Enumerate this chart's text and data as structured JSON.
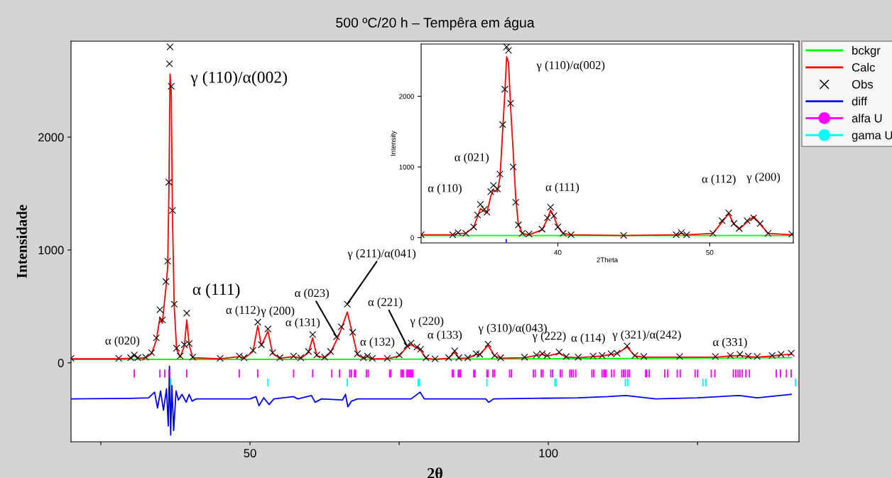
{
  "chart_data": [
    {
      "type": "line",
      "title": "500 ºC/20 h – Tempêra em água",
      "xlabel": "2θ",
      "ylabel": "Intensidade",
      "xlim": [
        20,
        142
      ],
      "ylim": [
        -700,
        2850
      ],
      "xticks": [
        {
          "value": 25,
          "label": null
        },
        50,
        {
          "value": 75,
          "label": null
        },
        100,
        {
          "value": 125,
          "label": null
        }
      ],
      "yticks": [
        0,
        1000,
        2000
      ],
      "grid": false,
      "legend": "right",
      "series": [
        {
          "name": "bckgr",
          "color": "#00ff00",
          "x": [
            20,
            60,
            100,
            140.7
          ],
          "values": [
            30,
            30,
            35,
            45
          ]
        },
        {
          "name": "Calc",
          "color": "#ff0000",
          "x": [
            20,
            28,
            30.0,
            30.6,
            31.2,
            32.5,
            33.5,
            34.3,
            34.9,
            35.3,
            35.9,
            36.2,
            36.4,
            36.6,
            36.8,
            37.0,
            37.3,
            37.7,
            38.3,
            39.0,
            39.4,
            39.8,
            40.4,
            45,
            48.2,
            49,
            50.5,
            51.3,
            51.9,
            53.0,
            53.8,
            55,
            57.3,
            58.5,
            59.8,
            60.5,
            61.2,
            62.5,
            63.5,
            64.5,
            65.3,
            66.3,
            67.2,
            68.0,
            69.0,
            69.7,
            70.5,
            73.0,
            75.0,
            76.3,
            77.0,
            78.0,
            78.6,
            79.5,
            81,
            83.3,
            84.3,
            85.0,
            86.5,
            87.9,
            88.5,
            89.9,
            91.0,
            92,
            96,
            98.0,
            99.0,
            99.8,
            101.8,
            103,
            105,
            107.5,
            109,
            110.5,
            111.5,
            113.2,
            114.5,
            116,
            122,
            128,
            130.5,
            132.1,
            133.5,
            135,
            137.5,
            139,
            140.7
          ],
          "values": [
            35,
            35,
            40,
            65,
            40,
            45,
            80,
            200,
            400,
            350,
            660,
            850,
            1500,
            2560,
            2400,
            1300,
            500,
            120,
            50,
            150,
            380,
            160,
            45,
            35,
            55,
            40,
            100,
            330,
            150,
            280,
            80,
            40,
            55,
            40,
            90,
            220,
            60,
            45,
            90,
            200,
            300,
            450,
            250,
            70,
            40,
            55,
            35,
            35,
            60,
            140,
            160,
            130,
            110,
            40,
            30,
            40,
            95,
            40,
            40,
            75,
            70,
            155,
            60,
            40,
            45,
            65,
            75,
            60,
            85,
            50,
            45,
            55,
            60,
            75,
            80,
            140,
            60,
            50,
            50,
            50,
            60,
            65,
            55,
            50,
            60,
            70,
            75
          ]
        },
        {
          "name": "Obs",
          "type": "scatter",
          "marker": "cross",
          "color": "#000000",
          "x": [
            20,
            28,
            30.0,
            30.6,
            31.2,
            32.5,
            33.5,
            34.3,
            34.9,
            35.3,
            35.9,
            36.2,
            36.4,
            36.5,
            36.6,
            36.8,
            37.0,
            37.3,
            37.7,
            38.3,
            39.0,
            39.4,
            39.8,
            40.4,
            45,
            48.2,
            49,
            50.5,
            51.3,
            51.9,
            53.0,
            53.8,
            55,
            57.3,
            58.5,
            59.8,
            60.5,
            61.2,
            62.5,
            63.5,
            64.5,
            65.3,
            66.3,
            67.2,
            68.0,
            69.0,
            69.7,
            70.5,
            73.0,
            75.0,
            76.3,
            77.0,
            78.0,
            78.6,
            79.5,
            81,
            83.3,
            84.3,
            85.0,
            86.5,
            87.9,
            88.5,
            89.9,
            91.0,
            92,
            96,
            98.0,
            99.0,
            99.8,
            101.8,
            103,
            105,
            107.5,
            109,
            110.5,
            111.5,
            113.2,
            114.5,
            116,
            122,
            128,
            130.5,
            132.1,
            133.5,
            135,
            137.5,
            139,
            140.7
          ],
          "values": [
            40,
            40,
            45,
            70,
            45,
            50,
            90,
            220,
            470,
            380,
            720,
            900,
            1600,
            2650,
            2800,
            2450,
            1350,
            520,
            130,
            60,
            160,
            440,
            170,
            50,
            40,
            60,
            45,
            110,
            360,
            160,
            300,
            90,
            45,
            60,
            45,
            100,
            250,
            70,
            50,
            100,
            230,
            320,
            520,
            270,
            80,
            45,
            60,
            40,
            40,
            70,
            150,
            175,
            140,
            120,
            45,
            35,
            45,
            105,
            45,
            45,
            80,
            75,
            165,
            65,
            45,
            50,
            70,
            80,
            65,
            95,
            55,
            50,
            60,
            65,
            80,
            85,
            150,
            65,
            55,
            55,
            55,
            65,
            75,
            60,
            55,
            65,
            75,
            85
          ]
        },
        {
          "name": "diff",
          "color": "#0000ff",
          "x": [
            20,
            30,
            33,
            34.0,
            34.5,
            35.0,
            35.5,
            36.0,
            36.3,
            36.5,
            36.7,
            36.9,
            37.2,
            37.6,
            38.0,
            38.6,
            39.3,
            39.8,
            40.3,
            41,
            50,
            51.0,
            51.5,
            52.3,
            53.2,
            54,
            57.3,
            58,
            60.3,
            60.9,
            62,
            65.5,
            66.0,
            66.4,
            67,
            68,
            77.0,
            78.5,
            79.2,
            89.5,
            90.0,
            90.8,
            105,
            110,
            113,
            118,
            125,
            132,
            135,
            140.7
          ],
          "values": [
            -320,
            -315,
            -310,
            -260,
            -400,
            -250,
            -420,
            -230,
            -560,
            -30,
            -640,
            -200,
            -600,
            -250,
            -330,
            -280,
            -350,
            -280,
            -340,
            -320,
            -320,
            -300,
            -380,
            -310,
            -370,
            -320,
            -300,
            -320,
            -290,
            -350,
            -320,
            -330,
            -280,
            -390,
            -340,
            -320,
            -320,
            -260,
            -320,
            -320,
            -350,
            -320,
            -310,
            -300,
            -290,
            -320,
            -310,
            -290,
            -310,
            -280
          ]
        },
        {
          "name": "alfa U",
          "type": "bar",
          "color": "#ff00ff",
          "base": [
            -130,
            -130,
            -130,
            -130,
            -130,
            -130,
            -130,
            -130,
            -130,
            -130,
            -130,
            -130,
            -130,
            -130,
            -130,
            -130,
            -130,
            -130,
            -130,
            -130,
            -130,
            -130,
            -130,
            -130,
            -130,
            -130,
            -130,
            -130,
            -130,
            -130,
            -130,
            -130,
            -130,
            -130,
            -130,
            -130,
            -130,
            -130,
            -130,
            -130,
            -130,
            -130,
            -130,
            -130,
            -130,
            -130,
            -130,
            -130,
            -130,
            -130,
            -130,
            -130,
            -130,
            -130,
            -130,
            -130,
            -130,
            -130,
            -130,
            -130,
            -130,
            -130,
            -130,
            -130,
            -130,
            -130,
            -130,
            -130,
            -130,
            -130,
            -130,
            -130,
            -130,
            -130,
            -130,
            -130,
            -130,
            -130,
            -130,
            -130,
            -130,
            -130,
            -130,
            -130,
            -130,
            -130,
            -130,
            -130
          ],
          "x": [
            30.6,
            34.9,
            35.7,
            36.4,
            39.4,
            48.2,
            51.3,
            57.3,
            60.5,
            63.7,
            65.0,
            66.7,
            67.0,
            67.5,
            67.7,
            69.5,
            69.8,
            73.4,
            73.6,
            75.3,
            75.5,
            75.7,
            76.3,
            76.5,
            76.7,
            76.9,
            77.1,
            77.3,
            83.9,
            84.1,
            84.9,
            85.1,
            85.3,
            87.5,
            87.7,
            89.7,
            89.9,
            90.7,
            91.0,
            93.5,
            93.8,
            97.5,
            97.8,
            98.8,
            99.1,
            100.4,
            100.7,
            102.0,
            102.3,
            103.6,
            103.9,
            104.2,
            104.6,
            107.3,
            107.6,
            109.0,
            109.3,
            109.5,
            109.7,
            110.6,
            111.0,
            112.3,
            112.6,
            112.9,
            113.3,
            113.6,
            116.3,
            116.5,
            116.9,
            119.5,
            120.0,
            121.6,
            122.1,
            124.6,
            125.0,
            127.3,
            127.9,
            131.0,
            131.4,
            131.8,
            132.1,
            132.5,
            133.1,
            133.7,
            138.2,
            138.9,
            139.9,
            140.7
          ],
          "values": [
            70,
            70,
            70,
            70,
            70,
            70,
            70,
            70,
            70,
            70,
            70,
            70,
            70,
            70,
            70,
            70,
            70,
            70,
            70,
            70,
            70,
            70,
            70,
            70,
            70,
            70,
            70,
            70,
            70,
            70,
            70,
            70,
            70,
            70,
            70,
            70,
            70,
            70,
            70,
            70,
            70,
            70,
            70,
            70,
            70,
            70,
            70,
            70,
            70,
            70,
            70,
            70,
            70,
            70,
            70,
            70,
            70,
            70,
            70,
            70,
            70,
            70,
            70,
            70,
            70,
            70,
            70,
            70,
            70,
            70,
            70,
            70,
            70,
            70,
            70,
            70,
            70,
            70,
            70,
            70,
            70,
            70,
            70,
            70,
            70,
            70,
            70,
            70
          ]
        },
        {
          "name": "gama U",
          "type": "bar",
          "color": "#00ffff",
          "x": [
            36.7,
            53.0,
            66.3,
            78.2,
            78.4,
            89.7,
            101.1,
            101.3,
            112.9,
            113.3,
            125.9,
            126.4,
            141.4
          ],
          "base": [
            -210,
            -210,
            -210,
            -210,
            -210,
            -210,
            -210,
            -210,
            -210,
            -210,
            -210,
            -210,
            -210
          ],
          "values": [
            70,
            70,
            70,
            70,
            70,
            70,
            70,
            70,
            70,
            70,
            70,
            70,
            70
          ]
        }
      ],
      "annotations": [
        {
          "text": "α (020)",
          "x": 30.6,
          "y": 70
        },
        {
          "text": "γ (110)/α(002)",
          "x": 36.6,
          "y": 2800
        },
        {
          "text": "α (111)",
          "x": 39.4,
          "y": 440
        },
        {
          "text": "α (112)",
          "x": 51.3,
          "y": 360
        },
        {
          "text": "γ (200)",
          "x": 53.0,
          "y": 300
        },
        {
          "text": "α (131)",
          "x": 60.5,
          "y": 250
        },
        {
          "text": "α (023)",
          "x": 64.5,
          "y": 230
        },
        {
          "text": "γ (211)/α(041)",
          "x": 66.3,
          "y": 520
        },
        {
          "text": "α (132)",
          "x": 69.7,
          "y": 60
        },
        {
          "text": "α (221)",
          "x": 76.3,
          "y": 150
        },
        {
          "text": "γ (220)",
          "x": 78.0,
          "y": 140
        },
        {
          "text": "α (133)",
          "x": 84.3,
          "y": 105
        },
        {
          "text": "γ (310)/α(043)",
          "x": 89.9,
          "y": 165
        },
        {
          "text": "γ (222)",
          "x": 101.8,
          "y": 95
        },
        {
          "text": "α (114)",
          "x": 107.5,
          "y": 60
        },
        {
          "text": "γ (321)/α(242)",
          "x": 113.2,
          "y": 150
        },
        {
          "text": "α (331)",
          "x": 132.1,
          "y": 75
        }
      ]
    },
    {
      "type": "line",
      "xlabel": "2Theta",
      "ylabel": "Intensity",
      "xlim": [
        31.0,
        55.5
      ],
      "ylim": [
        -75,
        2740
      ],
      "xticks": [
        40,
        50
      ],
      "yticks": [
        0,
        1000,
        2000
      ],
      "grid": false,
      "series": [
        {
          "color": "#00ff00",
          "x": [
            31.0,
            55.4
          ],
          "values": [
            30,
            30
          ]
        },
        {
          "color": "#ff0000",
          "x": [
            31.0,
            33.08,
            33.43,
            33.94,
            34.46,
            34.72,
            34.9,
            35.16,
            35.33,
            35.59,
            35.76,
            36.02,
            36.19,
            36.37,
            36.51,
            36.63,
            36.75,
            36.89,
            37.06,
            37.23,
            37.4,
            37.66,
            38.1,
            38.96,
            39.31,
            39.52,
            39.74,
            40.0,
            40.35,
            40.87,
            44.33,
            47.79,
            48.13,
            48.48,
            50.21,
            50.81,
            51.25,
            51.59,
            51.94,
            52.46,
            52.89,
            53.32,
            53.84,
            55.4
          ],
          "values": [
            40,
            40,
            60,
            60,
            150,
            300,
            410,
            370,
            350,
            590,
            670,
            650,
            850,
            1520,
            2040,
            2560,
            2480,
            1850,
            1220,
            560,
            190,
            60,
            40,
            110,
            260,
            390,
            300,
            150,
            60,
            40,
            30,
            40,
            60,
            40,
            60,
            220,
            340,
            190,
            120,
            220,
            300,
            190,
            60,
            40
          ]
        },
        {
          "type": "scatter",
          "marker": "cross",
          "color": "#000000",
          "x": [
            31.0,
            33.08,
            33.43,
            33.94,
            34.46,
            34.72,
            34.9,
            35.16,
            35.33,
            35.59,
            35.76,
            36.02,
            36.19,
            36.37,
            36.51,
            36.63,
            36.75,
            36.89,
            37.06,
            37.23,
            37.4,
            37.66,
            38.1,
            38.96,
            39.31,
            39.52,
            39.74,
            40.0,
            40.35,
            40.87,
            44.33,
            47.79,
            48.13,
            48.48,
            50.21,
            50.81,
            51.25,
            51.59,
            51.94,
            52.46,
            52.89,
            53.32,
            53.84,
            55.4
          ],
          "values": [
            40,
            40,
            70,
            60,
            150,
            320,
            470,
            400,
            360,
            650,
            740,
            690,
            900,
            1600,
            2100,
            2700,
            2650,
            1900,
            1000,
            500,
            180,
            60,
            50,
            120,
            280,
            430,
            310,
            150,
            60,
            40,
            30,
            40,
            70,
            40,
            60,
            240,
            350,
            200,
            130,
            240,
            280,
            200,
            60,
            50
          ]
        },
        {
          "type": "bar",
          "color": "#0000ff",
          "x": [
            36.6
          ],
          "base": [
            -70
          ],
          "values": [
            50
          ]
        }
      ],
      "annotations": [
        {
          "text": "γ (110)/α(002)",
          "x": 36.63,
          "y": 2700
        },
        {
          "text": "α (021)",
          "x": 35.76,
          "y": 740
        },
        {
          "text": "α (110)",
          "x": 34.9,
          "y": 470
        },
        {
          "text": "α (111)",
          "x": 39.52,
          "y": 430
        },
        {
          "text": "α (112)",
          "x": 51.25,
          "y": 350
        },
        {
          "text": "γ (200)",
          "x": 52.89,
          "y": 280
        }
      ]
    }
  ]
}
